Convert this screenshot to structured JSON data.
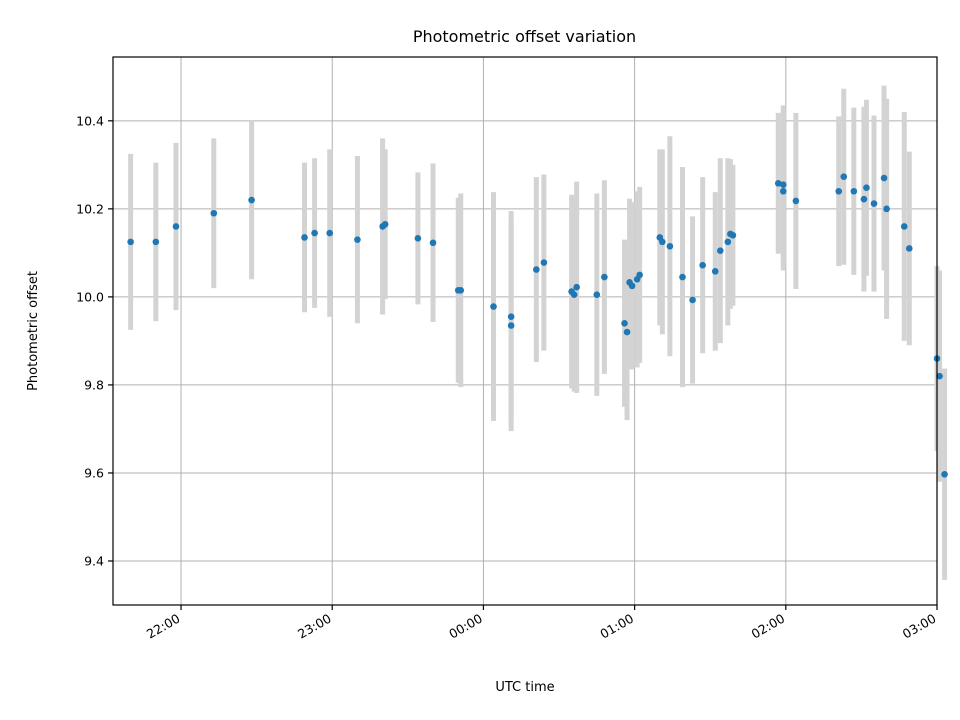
{
  "chart_data": {
    "type": "scatter",
    "title": "Photometric offset variation",
    "xlabel": "UTC time",
    "ylabel": "Photometric offset",
    "x_unit": "UTC time (HH:MM)",
    "xlim": [
      "21:33",
      "03:00"
    ],
    "ylim": [
      9.3,
      10.545
    ],
    "grid": true,
    "x_ticks": [
      "22:00",
      "23:00",
      "00:00",
      "01:00",
      "02:00",
      "03:00"
    ],
    "y_ticks": [
      "9.4",
      "9.6",
      "9.8",
      "10.0",
      "10.2",
      "10.4"
    ],
    "colors": {
      "point": "#1f77b4",
      "errorbar": "#d3d3d3"
    },
    "points": [
      {
        "x": "21:40",
        "y": 10.125,
        "err": 0.2
      },
      {
        "x": "21:50",
        "y": 10.125,
        "err": 0.18
      },
      {
        "x": "21:58",
        "y": 10.16,
        "err": 0.19
      },
      {
        "x": "22:13",
        "y": 10.19,
        "err": 0.17
      },
      {
        "x": "22:28",
        "y": 10.22,
        "err": 0.18
      },
      {
        "x": "22:49",
        "y": 10.135,
        "err": 0.17
      },
      {
        "x": "22:53",
        "y": 10.145,
        "err": 0.17
      },
      {
        "x": "22:59",
        "y": 10.145,
        "err": 0.19
      },
      {
        "x": "23:10",
        "y": 10.13,
        "err": 0.19
      },
      {
        "x": "23:20",
        "y": 10.16,
        "err": 0.2
      },
      {
        "x": "23:21",
        "y": 10.165,
        "err": 0.17
      },
      {
        "x": "23:34",
        "y": 10.133,
        "err": 0.15
      },
      {
        "x": "23:40",
        "y": 10.123,
        "err": 0.18
      },
      {
        "x": "23:50",
        "y": 10.015,
        "err": 0.21
      },
      {
        "x": "23:51",
        "y": 10.015,
        "err": 0.22
      },
      {
        "x": "00:04",
        "y": 9.978,
        "err": 0.26
      },
      {
        "x": "00:11",
        "y": 9.955,
        "err": 0.24
      },
      {
        "x": "00:11",
        "y": 9.935,
        "err": 0.24
      },
      {
        "x": "00:21",
        "y": 10.062,
        "err": 0.21
      },
      {
        "x": "00:24",
        "y": 10.078,
        "err": 0.2
      },
      {
        "x": "00:35",
        "y": 10.012,
        "err": 0.22
      },
      {
        "x": "00:36",
        "y": 10.005,
        "err": 0.22
      },
      {
        "x": "00:37",
        "y": 10.022,
        "err": 0.24
      },
      {
        "x": "00:45",
        "y": 10.005,
        "err": 0.23
      },
      {
        "x": "00:48",
        "y": 10.045,
        "err": 0.22
      },
      {
        "x": "00:56",
        "y": 9.94,
        "err": 0.19
      },
      {
        "x": "00:57",
        "y": 9.92,
        "err": 0.2
      },
      {
        "x": "00:58",
        "y": 10.033,
        "err": 0.19
      },
      {
        "x": "00:59",
        "y": 10.025,
        "err": 0.19
      },
      {
        "x": "01:01",
        "y": 10.04,
        "err": 0.2
      },
      {
        "x": "01:02",
        "y": 10.05,
        "err": 0.2
      },
      {
        "x": "01:10",
        "y": 10.135,
        "err": 0.2
      },
      {
        "x": "01:11",
        "y": 10.125,
        "err": 0.21
      },
      {
        "x": "01:14",
        "y": 10.115,
        "err": 0.25
      },
      {
        "x": "01:19",
        "y": 10.045,
        "err": 0.25
      },
      {
        "x": "01:23",
        "y": 9.993,
        "err": 0.19
      },
      {
        "x": "01:27",
        "y": 10.072,
        "err": 0.2
      },
      {
        "x": "01:32",
        "y": 10.058,
        "err": 0.18
      },
      {
        "x": "01:34",
        "y": 10.105,
        "err": 0.21
      },
      {
        "x": "01:37",
        "y": 10.125,
        "err": 0.19
      },
      {
        "x": "01:38",
        "y": 10.143,
        "err": 0.17
      },
      {
        "x": "01:39",
        "y": 10.14,
        "err": 0.16
      },
      {
        "x": "01:57",
        "y": 10.258,
        "err": 0.16
      },
      {
        "x": "01:59",
        "y": 10.255,
        "err": 0.18
      },
      {
        "x": "01:59",
        "y": 10.24,
        "err": 0.18
      },
      {
        "x": "02:04",
        "y": 10.218,
        "err": 0.2
      },
      {
        "x": "02:21",
        "y": 10.24,
        "err": 0.17
      },
      {
        "x": "02:23",
        "y": 10.273,
        "err": 0.2
      },
      {
        "x": "02:27",
        "y": 10.24,
        "err": 0.19
      },
      {
        "x": "02:31",
        "y": 10.222,
        "err": 0.21
      },
      {
        "x": "02:32",
        "y": 10.248,
        "err": 0.2
      },
      {
        "x": "02:35",
        "y": 10.212,
        "err": 0.2
      },
      {
        "x": "02:39",
        "y": 10.27,
        "err": 0.21
      },
      {
        "x": "02:40",
        "y": 10.2,
        "err": 0.25
      },
      {
        "x": "02:47",
        "y": 10.16,
        "err": 0.26
      },
      {
        "x": "02:49",
        "y": 10.11,
        "err": 0.22
      },
      {
        "x": "03:00",
        "y": 9.86,
        "err": 0.21
      },
      {
        "x": "03:01",
        "y": 9.82,
        "err": 0.24
      },
      {
        "x": "03:03",
        "y": 9.597,
        "err": 0.24
      }
    ]
  }
}
